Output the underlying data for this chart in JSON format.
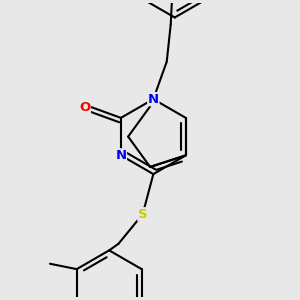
{
  "bg_color": "#e8e8e8",
  "bond_color": "black",
  "bond_width": 1.5,
  "atom_colors": {
    "N": "blue",
    "O": "red",
    "S": "#cccc00"
  },
  "figsize": [
    3.0,
    3.0
  ],
  "dpi": 100
}
